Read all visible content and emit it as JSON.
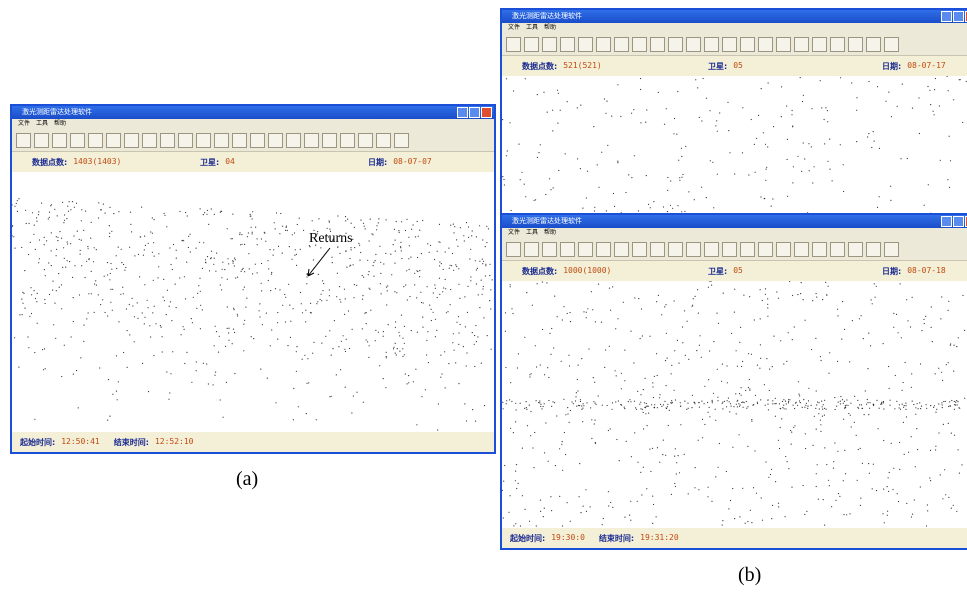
{
  "windows": [
    {
      "title": "激光测距雷达处理软件",
      "menu": [
        "文件",
        "工具",
        "帮助"
      ],
      "info": [
        {
          "label": "数据点数:",
          "value": "1403(1403)"
        },
        {
          "label": "卫星:",
          "value": "04"
        },
        {
          "label": "日期:",
          "value": "08-07-07"
        }
      ],
      "status": [
        {
          "label": "起始时间:",
          "value": "12:50:41"
        },
        {
          "label": "结束时间:",
          "value": "12:52:10"
        }
      ]
    },
    {
      "title": "激光测距雷达处理软件",
      "menu": [
        "文件",
        "工具",
        "帮助"
      ],
      "info": [
        {
          "label": "数据点数:",
          "value": "521(521)"
        },
        {
          "label": "卫星:",
          "value": "05"
        },
        {
          "label": "日期:",
          "value": "08-07-17"
        }
      ],
      "status": []
    },
    {
      "title": "激光测距雷达处理软件",
      "menu": [
        "文件",
        "工具",
        "帮助"
      ],
      "info": [
        {
          "label": "数据点数:",
          "value": "1000(1000)"
        },
        {
          "label": "卫星:",
          "value": "05"
        },
        {
          "label": "日期:",
          "value": "08-07-18"
        }
      ],
      "status": [
        {
          "label": "起始时间:",
          "value": "19:30:0"
        },
        {
          "label": "结束时间:",
          "value": "19:31:20"
        }
      ]
    }
  ],
  "annotation": "Returns",
  "captions": [
    "(a)",
    "(b)"
  ]
}
